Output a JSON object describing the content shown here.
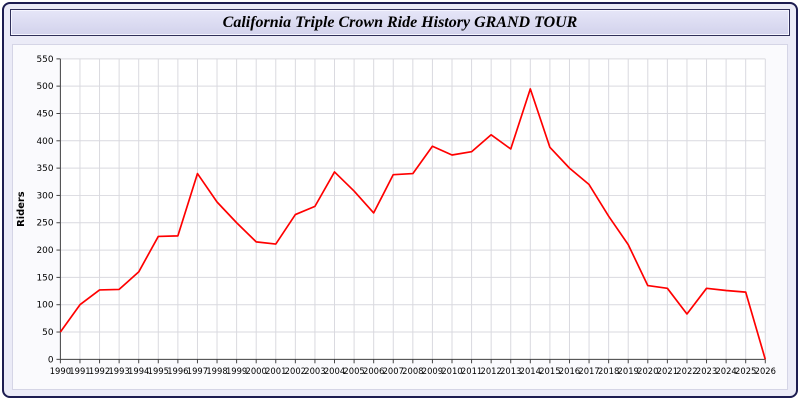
{
  "header": {
    "title": "California Triple Crown Ride History GRAND TOUR"
  },
  "chart_data": {
    "type": "line",
    "title": "California Triple Crown Ride History GRAND TOUR",
    "xlabel": "",
    "ylabel": "Riders",
    "ylim": [
      0,
      550
    ],
    "ytick_step": 50,
    "grid": true,
    "legend": "none",
    "line_color": "#ff0000",
    "x": [
      1990,
      1991,
      1992,
      1993,
      1994,
      1995,
      1996,
      1997,
      1998,
      1999,
      2000,
      2001,
      2002,
      2003,
      2004,
      2005,
      2006,
      2007,
      2008,
      2009,
      2010,
      2011,
      2012,
      2013,
      2014,
      2015,
      2016,
      2017,
      2018,
      2019,
      2020,
      2021,
      2022,
      2023,
      2024,
      2025,
      2026
    ],
    "series": [
      {
        "name": "Riders",
        "values": [
          50,
          100,
          127,
          128,
          160,
          225,
          226,
          340,
          288,
          250,
          215,
          211,
          265,
          280,
          343,
          308,
          268,
          338,
          340,
          390,
          374,
          380,
          411,
          385,
          495,
          388,
          350,
          320,
          262,
          210,
          135,
          130,
          83,
          130,
          126,
          123,
          0
        ]
      }
    ]
  }
}
